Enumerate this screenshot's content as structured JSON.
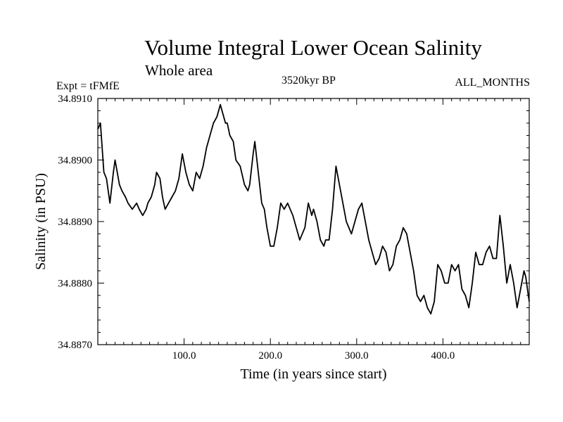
{
  "header": {
    "title": "Volume Integral Lower Ocean Salinity",
    "subtitle": "Whole area",
    "experiment": "Expt = tFMfE",
    "period": "3520kyr BP",
    "months": "ALL_MONTHS"
  },
  "chart_data": {
    "type": "line",
    "title": "Volume Integral Lower Ocean Salinity",
    "xlabel": "Time (in years since start)",
    "ylabel": "Salinity (in PSU)",
    "xlim": [
      0,
      500
    ],
    "ylim": [
      34.887,
      34.891
    ],
    "xticks": [
      100,
      200,
      300,
      400
    ],
    "xtick_labels": [
      "100.0",
      "200.0",
      "300.0",
      "400.0"
    ],
    "yticks": [
      34.887,
      34.888,
      34.889,
      34.89,
      34.891
    ],
    "ytick_labels": [
      "34.8870",
      "34.8880",
      "34.8890",
      "34.8900",
      "34.8910"
    ],
    "series": [
      {
        "name": "Salinity",
        "x": [
          0,
          3,
          7,
          10,
          14,
          18,
          20,
          25,
          28,
          32,
          35,
          40,
          45,
          48,
          52,
          56,
          58,
          62,
          66,
          68,
          72,
          75,
          78,
          82,
          86,
          90,
          94,
          98,
          102,
          106,
          110,
          114,
          118,
          122,
          126,
          130,
          134,
          138,
          142,
          144,
          148,
          150,
          153,
          157,
          160,
          165,
          170,
          174,
          176,
          180,
          182,
          186,
          190,
          193,
          196,
          200,
          204,
          208,
          212,
          216,
          220,
          226,
          230,
          234,
          240,
          244,
          248,
          250,
          254,
          258,
          262,
          264,
          268,
          272,
          276,
          280,
          284,
          288,
          294,
          298,
          302,
          306,
          310,
          314,
          318,
          322,
          326,
          330,
          334,
          338,
          342,
          346,
          350,
          354,
          358,
          362,
          366,
          370,
          374,
          378,
          382,
          386,
          390,
          394,
          398,
          402,
          406,
          410,
          414,
          418,
          422,
          426,
          430,
          434,
          438,
          442,
          446,
          450,
          454,
          458,
          462,
          466,
          470,
          474,
          478,
          482,
          486,
          490,
          494,
          496,
          498,
          500
        ],
        "y": [
          34.8905,
          34.8906,
          34.8898,
          34.8897,
          34.8893,
          34.8898,
          34.89,
          34.8896,
          34.8895,
          34.8894,
          34.8893,
          34.8892,
          34.8893,
          34.8892,
          34.8891,
          34.8892,
          34.8893,
          34.8894,
          34.8896,
          34.8898,
          34.8897,
          34.8894,
          34.8892,
          34.8893,
          34.8894,
          34.8895,
          34.8897,
          34.8901,
          34.8898,
          34.8896,
          34.8895,
          34.8898,
          34.8897,
          34.8899,
          34.8902,
          34.8904,
          34.8906,
          34.8907,
          34.8909,
          34.8908,
          34.8906,
          34.8906,
          34.8904,
          34.8903,
          34.89,
          34.8899,
          34.8896,
          34.8895,
          34.8896,
          34.8901,
          34.8903,
          34.8898,
          34.8893,
          34.8892,
          34.8889,
          34.8886,
          34.8886,
          34.8889,
          34.8893,
          34.8892,
          34.8893,
          34.8891,
          34.8889,
          34.8887,
          34.8889,
          34.8893,
          34.8891,
          34.8892,
          34.889,
          34.8887,
          34.8886,
          34.8887,
          34.8887,
          34.8892,
          34.8899,
          34.8896,
          34.8893,
          34.889,
          34.8888,
          34.889,
          34.8892,
          34.8893,
          34.889,
          34.8887,
          34.8885,
          34.8883,
          34.8884,
          34.8886,
          34.8885,
          34.8882,
          34.8883,
          34.8886,
          34.8887,
          34.8889,
          34.8888,
          34.8885,
          34.8882,
          34.8878,
          34.8877,
          34.8878,
          34.8876,
          34.8875,
          34.8877,
          34.8883,
          34.8882,
          34.888,
          34.888,
          34.8883,
          34.8882,
          34.8883,
          34.8879,
          34.8878,
          34.8876,
          34.888,
          34.8885,
          34.8883,
          34.8883,
          34.8885,
          34.8886,
          34.8884,
          34.8884,
          34.8891,
          34.8886,
          34.888,
          34.8883,
          34.888,
          34.8876,
          34.8879,
          34.8882,
          34.8881,
          34.8879,
          34.8877
        ]
      }
    ]
  }
}
